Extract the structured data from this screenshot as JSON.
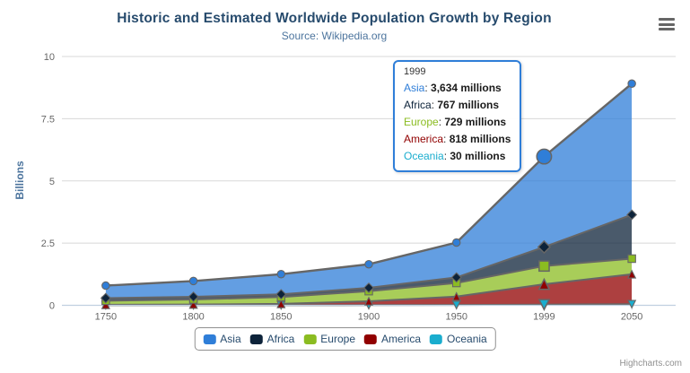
{
  "chart": {
    "title": "Historic and Estimated Worldwide Population Growth by Region",
    "subtitle": "Source: Wikipedia.org",
    "title_color": "#274b6d",
    "subtitle_color": "#4d759e"
  },
  "chart_data": {
    "type": "area",
    "stacking": "normal",
    "title": "Historic and Estimated Worldwide Population Growth by Region",
    "subtitle": "Source: Wikipedia.org",
    "categories": [
      "1750",
      "1800",
      "1850",
      "1900",
      "1950",
      "1999",
      "2050"
    ],
    "series": [
      {
        "name": "Asia",
        "color": "#2f7ed8",
        "marker": "circle",
        "values_millions": [
          502,
          635,
          809,
          947,
          1402,
          3634,
          5268
        ]
      },
      {
        "name": "Africa",
        "color": "#0d233a",
        "marker": "diamond",
        "values_millions": [
          106,
          107,
          111,
          133,
          221,
          767,
          1766
        ]
      },
      {
        "name": "Europe",
        "color": "#8bbc21",
        "marker": "square",
        "values_millions": [
          163,
          203,
          276,
          408,
          547,
          729,
          628
        ]
      },
      {
        "name": "America",
        "color": "#910000",
        "marker": "triangle",
        "values_millions": [
          18,
          31,
          54,
          156,
          339,
          818,
          1201
        ]
      },
      {
        "name": "Oceania",
        "color": "#1aadce",
        "marker": "triangle-down",
        "values_millions": [
          2,
          2,
          2,
          6,
          13,
          30,
          46
        ]
      }
    ],
    "xlabel": "",
    "ylabel": "Billions",
    "ylim": [
      0,
      10
    ],
    "yticks": [
      "0",
      "2.5",
      "5",
      "7.5",
      "10"
    ],
    "value_unit": "millions",
    "axis_unit": "billions",
    "grid": true,
    "legend_position": "bottom",
    "hovered_point": {
      "category": "1999",
      "series": "Asia"
    }
  },
  "tooltip": {
    "header": "1999",
    "border_color": "#2f7ed8",
    "rows": [
      {
        "name": "Asia",
        "value": "3,634 millions"
      },
      {
        "name": "Africa",
        "value": "767 millions"
      },
      {
        "name": "Europe",
        "value": "729 millions"
      },
      {
        "name": "America",
        "value": "818 millions"
      },
      {
        "name": "Oceania",
        "value": "30 millions"
      }
    ]
  },
  "legend": {
    "items": [
      "Asia",
      "Africa",
      "Europe",
      "America",
      "Oceania"
    ]
  },
  "credits": {
    "label": "Highcharts.com"
  },
  "export_menu": {
    "icon": "hamburger-icon"
  },
  "colors": {
    "grid_line": "#d8d8d8",
    "axis_line": "#c0d0e0",
    "tick_label": "#666666",
    "series_outline": "#666666",
    "legend_border": "#909090",
    "legend_text": "#274b6d",
    "credits_text": "#909090",
    "fill_opacity": 0.75
  }
}
